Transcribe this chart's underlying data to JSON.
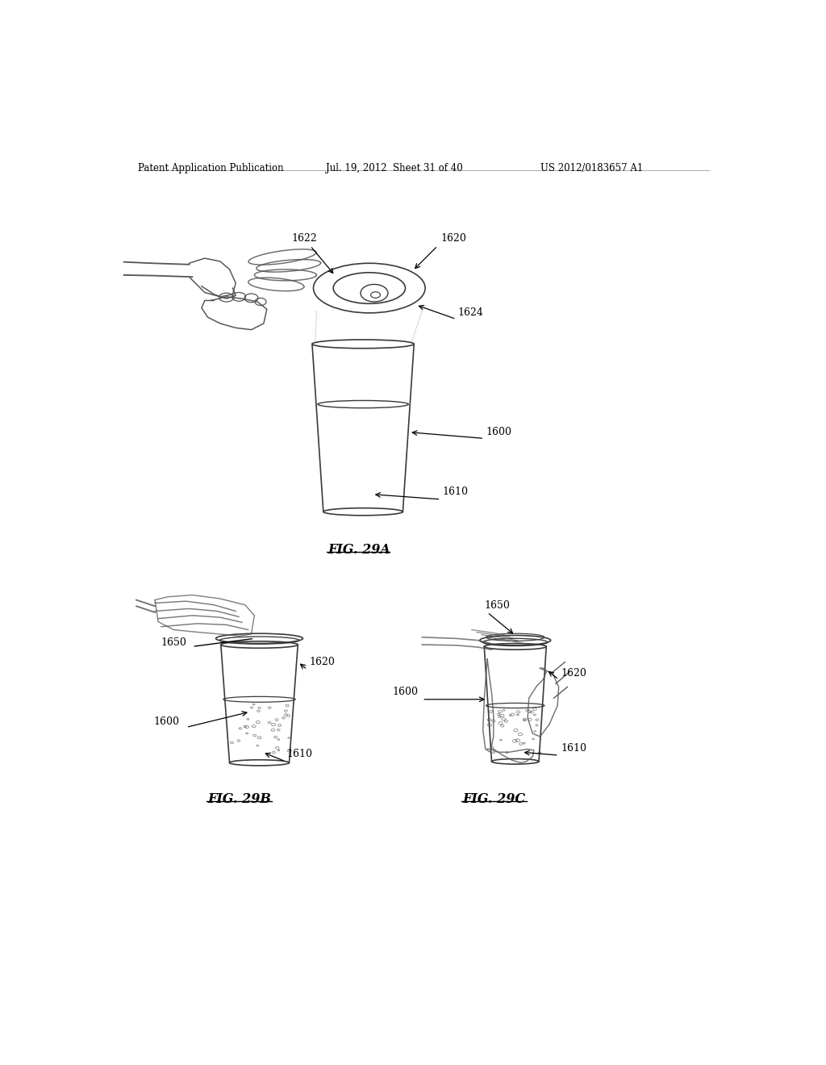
{
  "bg_color": "#ffffff",
  "header_left": "Patent Application Publication",
  "header_mid": "Jul. 19, 2012  Sheet 31 of 40",
  "header_right": "US 2012/0183657 A1",
  "fig29a_label": "FIG. 29A",
  "fig29b_label": "FIG. 29B",
  "fig29c_label": "FIG. 29C",
  "line_color": "#3a3a3a",
  "text_color": "#000000",
  "lw_main": 1.2,
  "lw_thin": 0.8,
  "lw_thick": 1.6
}
